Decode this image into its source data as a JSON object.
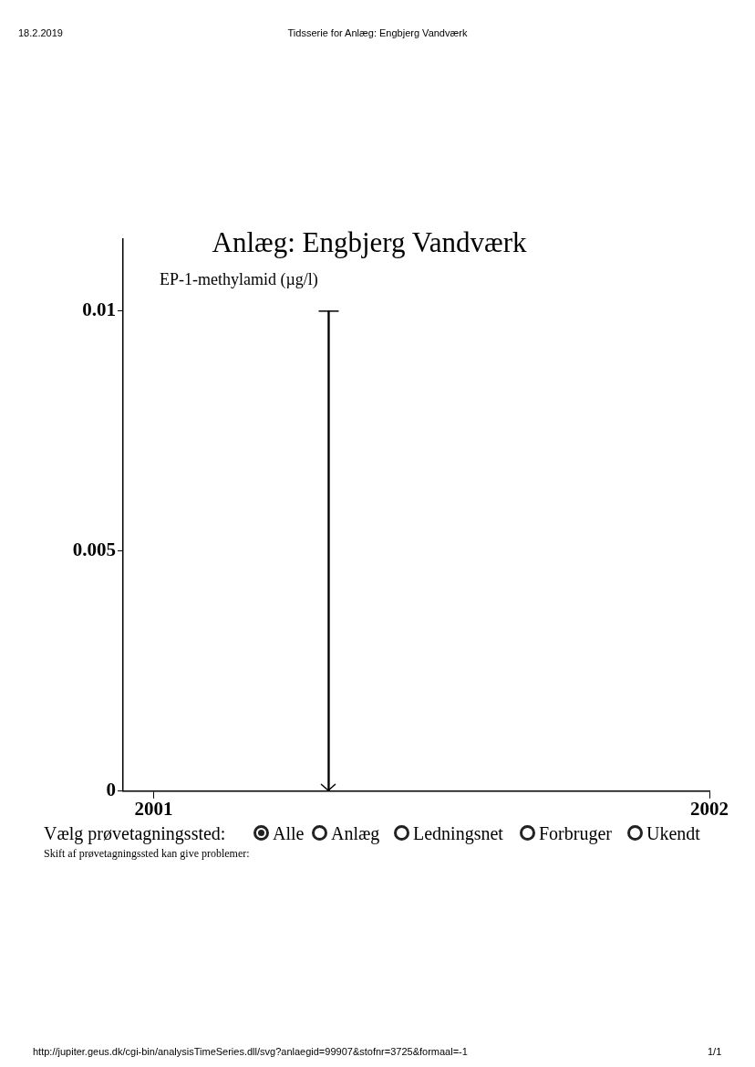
{
  "chart_data": {
    "type": "bar",
    "title": "Anlæg: Engbjerg Vandværk",
    "ylabel": "EP-1-methylamid (µg/l)",
    "x": [
      "2001-04-26"
    ],
    "values": [
      0.01
    ],
    "errors": [
      [
        0,
        0.01
      ]
    ],
    "color": "#000000",
    "xlim": [
      "2000-12-12",
      "2002"
    ],
    "xticks": [
      {
        "value": "2001",
        "label": "2001"
      },
      {
        "value": "2002",
        "label": "2002"
      }
    ],
    "ylim": [
      0,
      0.0115
    ],
    "yticks": [
      0,
      0.005,
      0.01
    ],
    "grid": false,
    "legend": false,
    "annotations": [
      "18.2.2019",
      "Tidsserie for Anlæg: Engbjerg Vandværk",
      "Vælg prøvetagningssted:",
      "Alle",
      "Anlæg",
      "Ledningsnet",
      "Forbruger",
      "Ukendt",
      "Skift af prøvetagningssted kan give problemer:",
      "http://jupiter.geus.dk/cgi-bin/analysisTimeSeries.dll/svg?anlaegid=99907&stofnr=3725&formaal=-1",
      "1/1"
    ]
  }
}
